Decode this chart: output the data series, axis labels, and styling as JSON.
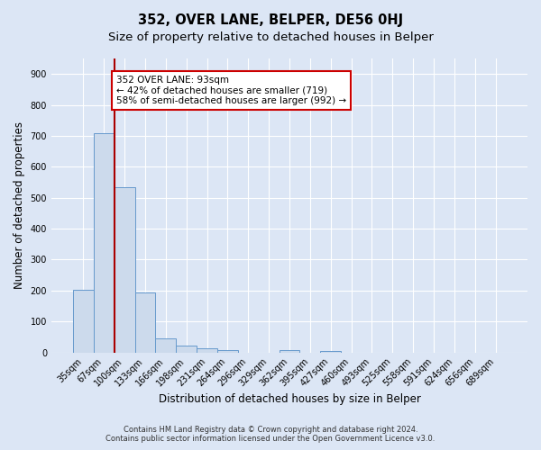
{
  "title": "352, OVER LANE, BELPER, DE56 0HJ",
  "subtitle": "Size of property relative to detached houses in Belper",
  "xlabel": "Distribution of detached houses by size in Belper",
  "ylabel": "Number of detached properties",
  "bar_labels": [
    "35sqm",
    "67sqm",
    "100sqm",
    "133sqm",
    "166sqm",
    "198sqm",
    "231sqm",
    "264sqm",
    "296sqm",
    "329sqm",
    "362sqm",
    "395sqm",
    "427sqm",
    "460sqm",
    "493sqm",
    "525sqm",
    "558sqm",
    "591sqm",
    "624sqm",
    "656sqm",
    "689sqm"
  ],
  "bar_values": [
    203,
    710,
    535,
    195,
    45,
    22,
    12,
    8,
    0,
    0,
    8,
    0,
    5,
    0,
    0,
    0,
    0,
    0,
    0,
    0,
    0
  ],
  "bar_color": "#ccdaec",
  "bar_edge_color": "#6699cc",
  "red_line_color": "#aa0000",
  "annotation_line1": "352 OVER LANE: 93sqm",
  "annotation_line2": "← 42% of detached houses are smaller (719)",
  "annotation_line3": "58% of semi-detached houses are larger (992) →",
  "annotation_box_facecolor": "#ffffff",
  "annotation_box_edgecolor": "#cc0000",
  "ylim": [
    0,
    950
  ],
  "yticks": [
    0,
    100,
    200,
    300,
    400,
    500,
    600,
    700,
    800,
    900
  ],
  "footer_line1": "Contains HM Land Registry data © Crown copyright and database right 2024.",
  "footer_line2": "Contains public sector information licensed under the Open Government Licence v3.0.",
  "background_color": "#dce6f5",
  "grid_color": "#ffffff",
  "title_fontsize": 10.5,
  "subtitle_fontsize": 9.5,
  "axis_label_fontsize": 8.5,
  "tick_fontsize": 7,
  "annotation_fontsize": 7.5,
  "footer_fontsize": 6
}
